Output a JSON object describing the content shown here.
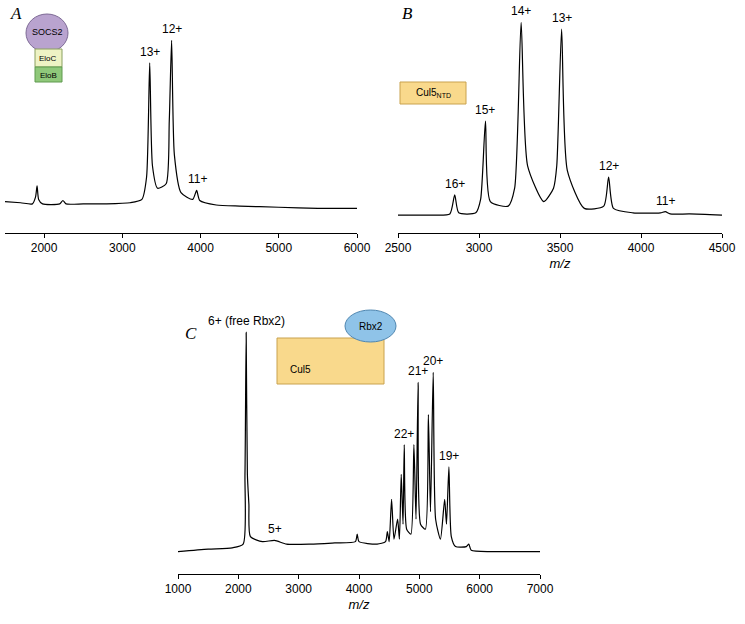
{
  "chart_data": [
    {
      "type": "line",
      "label": "A",
      "color": "#000000",
      "grid": false,
      "tick_labels": "x",
      "xlim": [
        1500,
        6000
      ],
      "xticks": [
        2000,
        3000,
        4000,
        5000,
        6000
      ],
      "ylim": [
        0,
        100
      ],
      "x": [
        1500,
        1700,
        1850,
        1890,
        1910,
        1930,
        1980,
        2200,
        2240,
        2280,
        2500,
        2800,
        3100,
        3250,
        3310,
        3350,
        3385,
        3450,
        3560,
        3600,
        3630,
        3665,
        3750,
        3900,
        3950,
        3990,
        4200,
        4500,
        5000,
        5500,
        6000
      ],
      "values": [
        14,
        13.5,
        13,
        16,
        21,
        15,
        13,
        13,
        14.5,
        13,
        13,
        13,
        13.5,
        15,
        25,
        76,
        30,
        20,
        22,
        50,
        86,
        35,
        18,
        15,
        19,
        14.5,
        12.5,
        12,
        11.5,
        11,
        11
      ],
      "annotations": [
        {
          "text": "13+",
          "x": 3350,
          "y": 76
        },
        {
          "text": "12+",
          "x": 3630,
          "y": 86
        },
        {
          "text": "11+",
          "x": 3960,
          "y": 19
        }
      ],
      "inset_labels": [
        "SOCS2",
        "EloC",
        "EloB"
      ]
    },
    {
      "type": "line",
      "label": "B",
      "color": "#000000",
      "grid": false,
      "tick_labels": "x",
      "xlabel": "m/z",
      "xlim": [
        2500,
        4500
      ],
      "xticks": [
        2500,
        3000,
        3500,
        4000,
        4500
      ],
      "ylim": [
        0,
        100
      ],
      "x": [
        2500,
        2700,
        2820,
        2850,
        2875,
        2980,
        3010,
        3040,
        3070,
        3180,
        3220,
        3260,
        3300,
        3400,
        3460,
        3480,
        3510,
        3545,
        3650,
        3770,
        3800,
        3830,
        3950,
        4120,
        4150,
        4180,
        4300,
        4500
      ],
      "values": [
        8,
        8,
        8.5,
        17,
        9,
        9,
        15,
        50,
        14,
        12,
        20,
        94,
        30,
        14,
        20,
        30,
        91,
        28,
        11,
        12,
        25,
        11,
        9,
        9,
        9.5,
        8.5,
        8.5,
        8
      ],
      "annotations": [
        {
          "text": "16+",
          "x": 2850,
          "y": 17
        },
        {
          "text": "15+",
          "x": 3040,
          "y": 50
        },
        {
          "text": "14+",
          "x": 3260,
          "y": 94
        },
        {
          "text": "13+",
          "x": 3510,
          "y": 91
        },
        {
          "text": "12+",
          "x": 3800,
          "y": 25
        },
        {
          "text": "11+",
          "x": 4150,
          "y": 9.5
        }
      ],
      "inset_labels": [
        {
          "text": "Cul5",
          "sub": "NTD"
        }
      ]
    },
    {
      "type": "line",
      "label": "C",
      "color": "#000000",
      "grid": false,
      "tick_labels": "x",
      "xlabel": "m/z",
      "xlim": [
        1000,
        7000
      ],
      "xticks": [
        1000,
        2000,
        3000,
        4000,
        5000,
        6000,
        7000
      ],
      "ylim": [
        0,
        100
      ],
      "x": [
        1000,
        1500,
        1900,
        2080,
        2110,
        2130,
        2150,
        2175,
        2200,
        2400,
        2600,
        2800,
        3200,
        3600,
        3940,
        3970,
        4000,
        4300,
        4440,
        4470,
        4500,
        4540,
        4580,
        4640,
        4670,
        4700,
        4730,
        4750,
        4790,
        4860,
        4910,
        4945,
        4980,
        5020,
        5100,
        5150,
        5185,
        5230,
        5270,
        5350,
        5420,
        5450,
        5490,
        5530,
        5600,
        5780,
        5820,
        5860,
        6200,
        7000
      ],
      "values": [
        9,
        10,
        10.5,
        12,
        40,
        97,
        40,
        28,
        15,
        13,
        13.5,
        12,
        12,
        12.5,
        13,
        16,
        13,
        12,
        13,
        17,
        13,
        30,
        14,
        22,
        14,
        40,
        20,
        52,
        18,
        16,
        52,
        22,
        77,
        20,
        18,
        64,
        25,
        81,
        22,
        14,
        30,
        20,
        43,
        15,
        11,
        11,
        12,
        9.5,
        9,
        9
      ],
      "annotations": [
        {
          "text": "6+ (free Rbx2)",
          "x": 2130,
          "y": 97
        },
        {
          "text": "5+",
          "x": 2600,
          "y": 13.5
        },
        {
          "text": "22+",
          "x": 4750,
          "y": 52
        },
        {
          "text": "21+",
          "x": 4980,
          "y": 77
        },
        {
          "text": "20+",
          "x": 5230,
          "y": 81
        },
        {
          "text": "19+",
          "x": 5490,
          "y": 43
        }
      ],
      "inset_labels": [
        "Rbx2",
        "Cul5"
      ]
    }
  ]
}
